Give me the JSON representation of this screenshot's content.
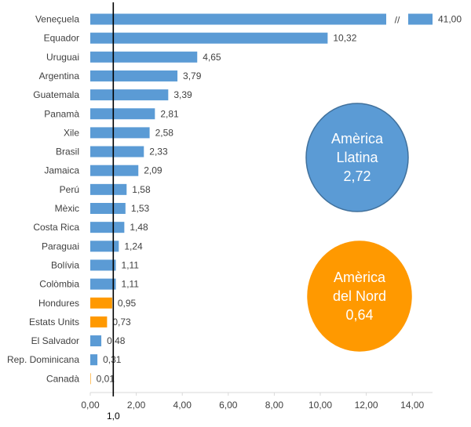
{
  "chart_data": {
    "type": "bar",
    "orientation": "horizontal",
    "categories": [
      "Veneçuela",
      "Equador",
      "Uruguai",
      "Argentina",
      "Guatemala",
      "Panamà",
      "Xile",
      "Brasil",
      "Jamaica",
      "Perú",
      "Mèxic",
      "Costa Rica",
      "Paraguai",
      "Bolívia",
      "Colòmbia",
      "Hondures",
      "Estats Units",
      "El Salvador",
      "Rep. Dominicana",
      "Canadà"
    ],
    "values": [
      41.0,
      10.32,
      4.65,
      3.79,
      3.39,
      2.81,
      2.58,
      2.33,
      2.09,
      1.58,
      1.53,
      1.48,
      1.24,
      1.11,
      1.11,
      0.95,
      0.73,
      0.48,
      0.31,
      0.01
    ],
    "value_labels": [
      "41,00",
      "10,32",
      "4,65",
      "3,79",
      "3,39",
      "2,81",
      "2,58",
      "2,33",
      "2,09",
      "1,58",
      "1,53",
      "1,48",
      "1,24",
      "1,11",
      "1,11",
      "0,95",
      "0,73",
      "0,48",
      "0,31",
      "0,01"
    ],
    "regions": [
      "latam",
      "latam",
      "latam",
      "latam",
      "latam",
      "latam",
      "latam",
      "latam",
      "latam",
      "latam",
      "latam",
      "latam",
      "latam",
      "latam",
      "latam",
      "na",
      "na",
      "latam",
      "latam",
      "na"
    ],
    "xlim": [
      0,
      16
    ],
    "xticks": [
      0,
      2,
      4,
      6,
      8,
      10,
      12,
      14
    ],
    "xtick_labels": [
      "0,00",
      "2,00",
      "4,00",
      "6,00",
      "8,00",
      "10,00",
      "12,00",
      "14,00"
    ],
    "reference_line": {
      "x": 1.0,
      "label": "1,0"
    },
    "axis_break": {
      "marker": "//"
    },
    "grid": false,
    "colors": {
      "latam": "#5b9bd5",
      "na": "#ff9900"
    },
    "annotations": [
      {
        "id": "latam",
        "lines": [
          "Amèrica",
          "Llatina",
          "2,72"
        ],
        "value": 2.72,
        "color": "#5b9bd5",
        "border": "#41719c"
      },
      {
        "id": "na",
        "lines": [
          "Amèrica",
          "del Nord",
          "0,64"
        ],
        "value": 0.64,
        "color": "#ff9900",
        "border": "#ff9900"
      }
    ]
  }
}
